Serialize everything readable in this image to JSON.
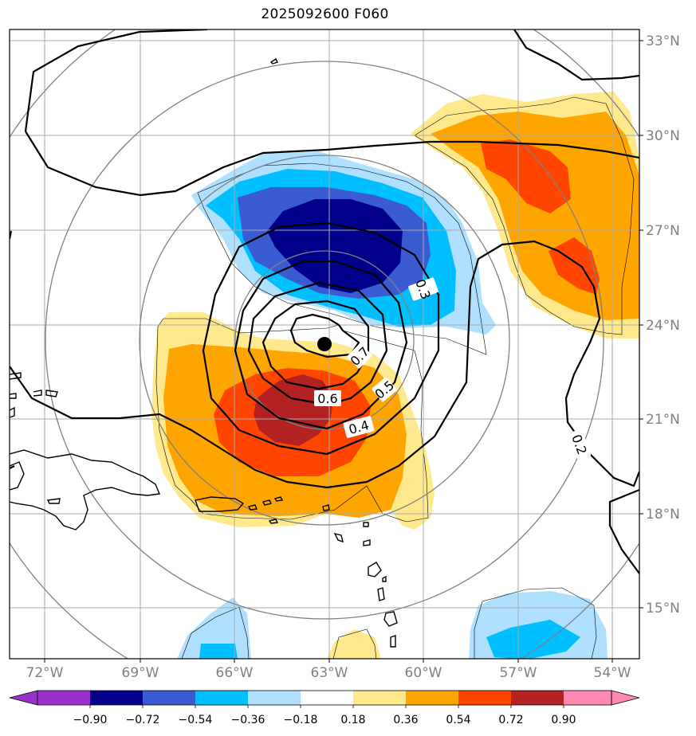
{
  "title": "2025092600 F060",
  "lon_labels": [
    "72°W",
    "69°W",
    "66°W",
    "63°W",
    "60°W",
    "57°W",
    "54°W"
  ],
  "lat_labels": [
    "33°N",
    "30°N",
    "27°N",
    "24°N",
    "21°N",
    "18°N",
    "15°N"
  ],
  "contour_labels": {
    "c03": "0.3",
    "c07": "0.7",
    "c05": "0.5",
    "c06": "0.6",
    "c04": "0.4",
    "c02": "0.2"
  },
  "colorbar": {
    "ticks": [
      "−0.90",
      "−0.72",
      "−0.54",
      "−0.36",
      "−0.18",
      "0.18",
      "0.36",
      "0.54",
      "0.72",
      "0.90"
    ],
    "colors": [
      "#9932cc",
      "#00008b",
      "#3a5bd1",
      "#00bfff",
      "#b0e0ff",
      "#ffffff",
      "#ffe98c",
      "#ffa500",
      "#ff4500",
      "#b22222",
      "#ff88b4"
    ]
  },
  "colors": {
    "neg_090": "#00008b",
    "neg_072": "#3a5bd1",
    "neg_054": "#00bfff",
    "neg_036": "#b0e0ff",
    "pos_036": "#ffe98c",
    "pos_054": "#ffa500",
    "pos_072": "#ff4500",
    "pos_090": "#b22222"
  }
}
